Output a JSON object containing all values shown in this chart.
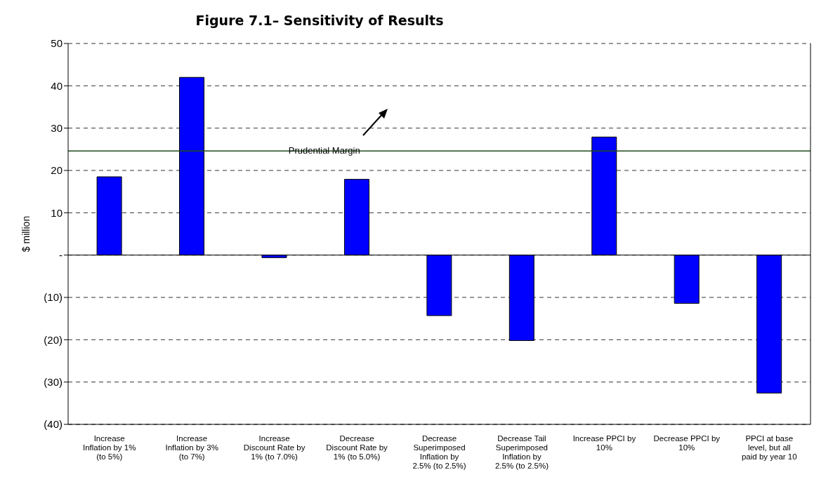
{
  "chart_data": {
    "type": "bar",
    "title": "Figure 7.1– Sensitivity of Results",
    "ylabel": "$ million",
    "categories": [
      "Increase Inflation by 1% (to 5%)",
      "Increase Inflation by 3% (to 7%)",
      "Increase Discount Rate by 1% (to 7.0%)",
      "Decrease Discount Rate by 1% (to 5.0%)",
      "Decrease Superimposed Inflation by 2.5% (to 2.5%)",
      "Decrease Tail Superimposed Inflation by 2.5% (to 2.5%)",
      "Increase PPCI by 10%",
      "Decrease PPCI by 10%",
      "PPCI at base level, but all paid by year 10"
    ],
    "values": [
      18.5,
      42.0,
      -0.6,
      17.9,
      -14.3,
      -20.2,
      27.9,
      -11.4,
      -32.6
    ],
    "color": "#0000ff",
    "ylim": [
      -40,
      50
    ],
    "yticks": [
      {
        "value": -40,
        "label": "(40)"
      },
      {
        "value": -30,
        "label": "(30)"
      },
      {
        "value": -20,
        "label": "(20)"
      },
      {
        "value": -10,
        "label": "(10)"
      },
      {
        "value": 0,
        "label": "-"
      },
      10,
      20,
      30,
      40,
      50
    ],
    "grid": "y",
    "ref_lines": [
      {
        "axis": "y",
        "value": 24.6,
        "label": "Prudential Margin",
        "color": "#1e4d1e"
      }
    ]
  }
}
